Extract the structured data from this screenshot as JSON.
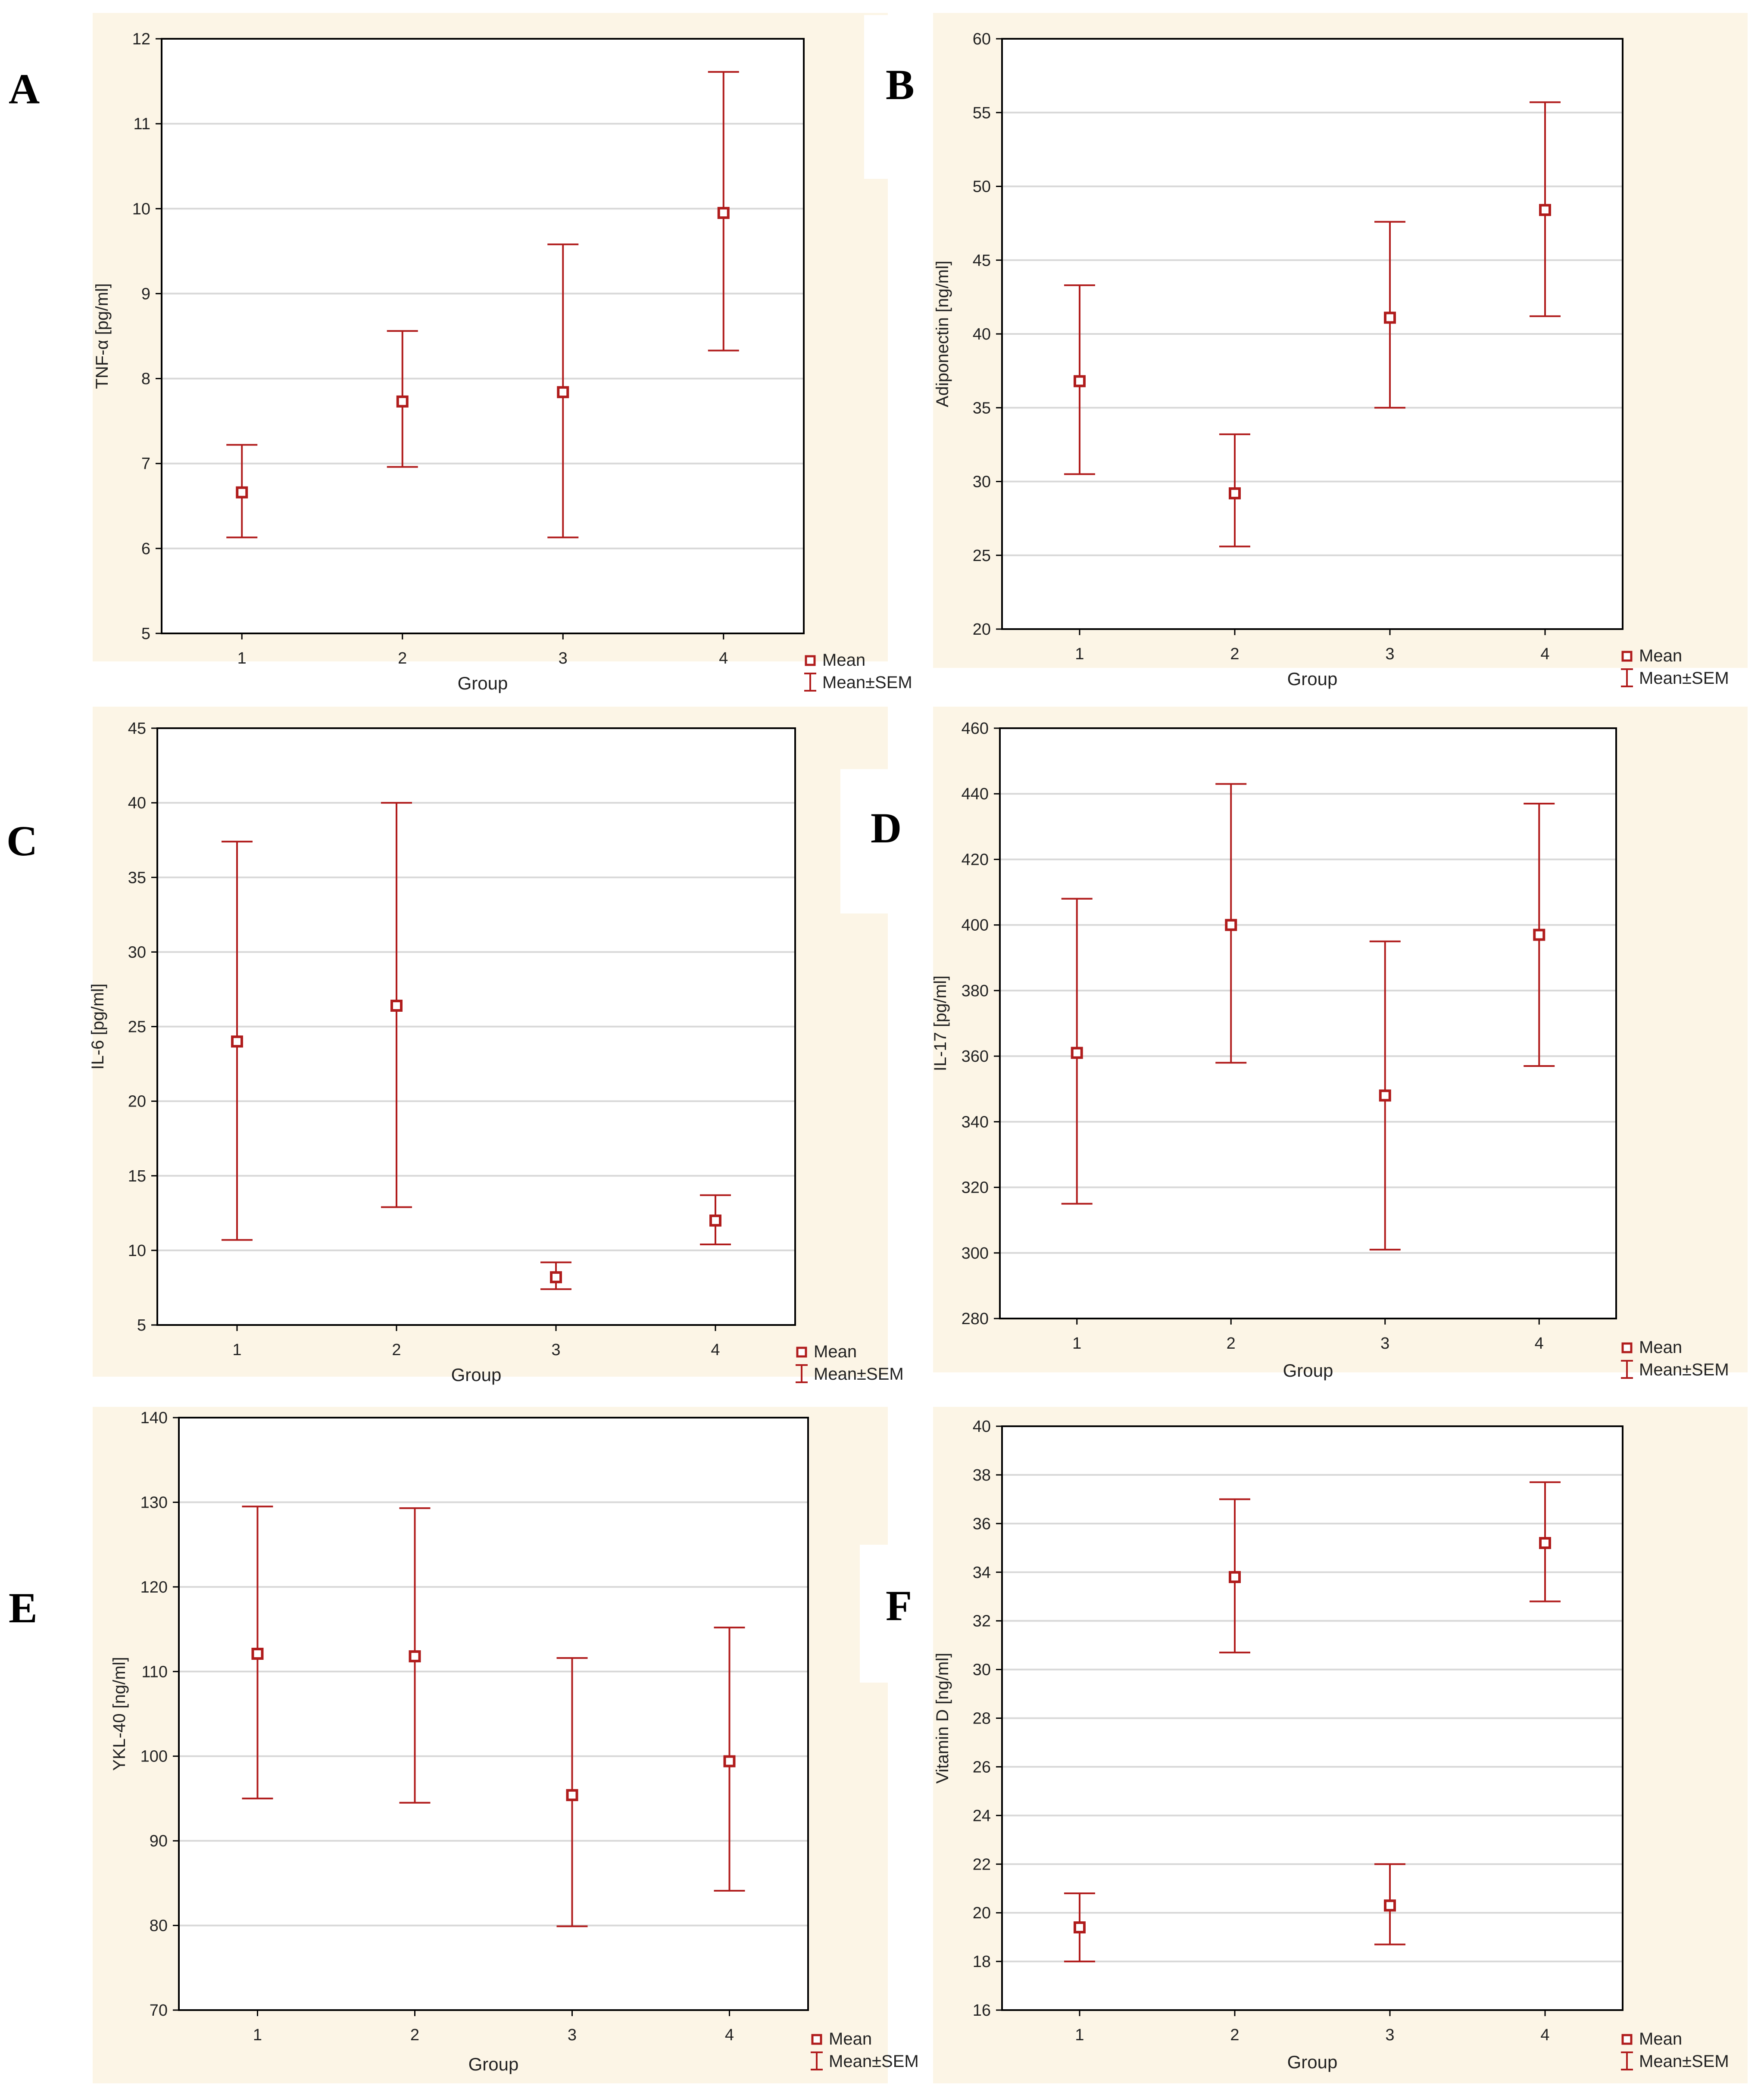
{
  "figure": {
    "legend_mean": "Mean",
    "legend_sem": "Mean±SEM",
    "colors": {
      "series": "#b01c1c",
      "panel_bg": "#fcf5e6",
      "plot_bg": "#ffffff",
      "grid": "#d8d8d8",
      "axis": "#000000"
    }
  },
  "chart_data": [
    {
      "panel": "A",
      "type": "scatter",
      "xlabel": "Group",
      "ylabel": "TNF-α [pg/ml]",
      "categories": [
        "1",
        "2",
        "3",
        "4"
      ],
      "ylim": [
        5,
        12
      ],
      "yticks": [
        5,
        6,
        7,
        8,
        9,
        10,
        11,
        12
      ],
      "series": [
        {
          "name": "Mean",
          "values": [
            6.66,
            7.73,
            7.84,
            9.95
          ],
          "lower": [
            6.13,
            6.96,
            6.13,
            8.33
          ],
          "upper": [
            7.22,
            8.56,
            9.58,
            11.61
          ]
        }
      ]
    },
    {
      "panel": "B",
      "type": "scatter",
      "xlabel": "Group",
      "ylabel": "Adiponectin [ng/ml]",
      "categories": [
        "1",
        "2",
        "3",
        "4"
      ],
      "ylim": [
        20,
        60
      ],
      "yticks": [
        20,
        25,
        30,
        35,
        40,
        45,
        50,
        55,
        60
      ],
      "series": [
        {
          "name": "Mean",
          "values": [
            36.8,
            29.2,
            41.1,
            48.4
          ],
          "lower": [
            30.5,
            25.6,
            35.0,
            41.2
          ],
          "upper": [
            43.3,
            33.2,
            47.6,
            55.7
          ]
        }
      ]
    },
    {
      "panel": "C",
      "type": "scatter",
      "xlabel": "Group",
      "ylabel": "IL-6 [pg/ml]",
      "categories": [
        "1",
        "2",
        "3",
        "4"
      ],
      "ylim": [
        5,
        45
      ],
      "yticks": [
        5,
        10,
        15,
        20,
        25,
        30,
        35,
        40,
        45
      ],
      "series": [
        {
          "name": "Mean",
          "values": [
            24.0,
            26.4,
            8.2,
            12.0
          ],
          "lower": [
            10.7,
            12.9,
            7.4,
            10.4
          ],
          "upper": [
            37.4,
            40.0,
            9.2,
            13.7
          ]
        }
      ]
    },
    {
      "panel": "D",
      "type": "scatter",
      "xlabel": "Group",
      "ylabel": "IL-17 [pg/ml]",
      "categories": [
        "1",
        "2",
        "3",
        "4"
      ],
      "ylim": [
        280,
        460
      ],
      "yticks": [
        280,
        300,
        320,
        340,
        360,
        380,
        400,
        420,
        440,
        460
      ],
      "series": [
        {
          "name": "Mean",
          "values": [
            361,
            400,
            348,
            397
          ],
          "lower": [
            315,
            358,
            301,
            357
          ],
          "upper": [
            408,
            443,
            395,
            437
          ]
        }
      ]
    },
    {
      "panel": "E",
      "type": "scatter",
      "xlabel": "Group",
      "ylabel": "YKL-40 [ng/ml]",
      "categories": [
        "1",
        "2",
        "3",
        "4"
      ],
      "ylim": [
        70,
        140
      ],
      "yticks": [
        70,
        80,
        90,
        100,
        110,
        120,
        130,
        140
      ],
      "series": [
        {
          "name": "Mean",
          "values": [
            112.1,
            111.8,
            95.4,
            99.4
          ],
          "lower": [
            95.0,
            94.5,
            79.9,
            84.1
          ],
          "upper": [
            129.5,
            129.3,
            111.6,
            115.2
          ]
        }
      ]
    },
    {
      "panel": "F",
      "type": "scatter",
      "xlabel": "Group",
      "ylabel": "Vitamin D [ng/ml]",
      "categories": [
        "1",
        "2",
        "3",
        "4"
      ],
      "ylim": [
        16,
        40
      ],
      "yticks": [
        16,
        18,
        20,
        22,
        24,
        26,
        28,
        30,
        32,
        34,
        36,
        38,
        40
      ],
      "series": [
        {
          "name": "Mean",
          "values": [
            19.4,
            33.8,
            20.3,
            35.2
          ],
          "lower": [
            18.0,
            30.7,
            18.7,
            32.8
          ],
          "upper": [
            20.8,
            37.0,
            22.0,
            37.7
          ]
        }
      ]
    }
  ]
}
